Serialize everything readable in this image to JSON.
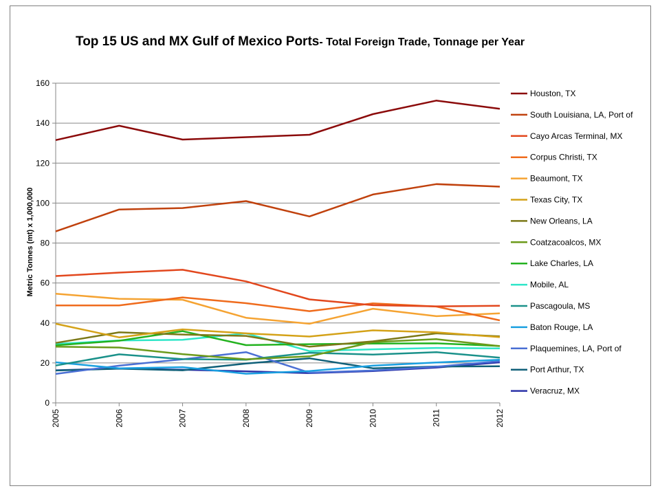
{
  "chart_data": {
    "type": "line",
    "title_main": "Top 15 US and MX Gulf of Mexico Ports",
    "title_sub": "- Total Foreign Trade, Tonnage per Year",
    "xlabel": "",
    "ylabel": "Metric Tonnes (mt) x 1,000,000",
    "ylim": [
      0,
      160
    ],
    "yticks": [
      "0",
      "20",
      "40",
      "60",
      "80",
      "100",
      "120",
      "140",
      "160"
    ],
    "x": [
      "2005",
      "2006",
      "2007",
      "2008",
      "2009",
      "2010",
      "2011",
      "2012"
    ],
    "grid": "horizontal",
    "legend": "right",
    "series": [
      {
        "name": "Houston, TX",
        "color": "#8b0a0a",
        "values": [
          131.5,
          138.7,
          131.8,
          133,
          134.2,
          144.5,
          151.3,
          147.2
        ]
      },
      {
        "name": "South Louisiana, LA, Port of",
        "color": "#c0410d",
        "values": [
          85.8,
          96.8,
          97.5,
          101,
          93.3,
          104.3,
          109.5,
          108.2
        ]
      },
      {
        "name": "Cayo Arcas Terminal, MX",
        "color": "#e2471d",
        "values": [
          63.5,
          65.2,
          66.6,
          60.8,
          51.8,
          48.9,
          48.3,
          48.6
        ]
      },
      {
        "name": "Corpus Christi, TX",
        "color": "#ef6b1c",
        "values": [
          48.8,
          48.8,
          52.8,
          49.9,
          45.9,
          49.8,
          48.2,
          41.3
        ]
      },
      {
        "name": "Beaumont, TX",
        "color": "#f5a332",
        "values": [
          54.6,
          52.1,
          51.6,
          42.6,
          39.6,
          47.1,
          43.4,
          44.8
        ]
      },
      {
        "name": "Texas City, TX",
        "color": "#d4a218",
        "values": [
          39.6,
          32.8,
          36.8,
          34.8,
          33.2,
          36.3,
          35.3,
          32.9
        ]
      },
      {
        "name": "New Orleans, LA",
        "color": "#7b7817",
        "values": [
          30,
          35.3,
          34.2,
          33.5,
          28.1,
          30.8,
          34.8,
          33.3
        ]
      },
      {
        "name": "Coatzacoalcos, MX",
        "color": "#6c9a1a",
        "values": [
          28.1,
          27.7,
          24.4,
          21.8,
          23.3,
          30.4,
          31.9,
          28.4
        ]
      },
      {
        "name": "Lake Charles, LA",
        "color": "#23b21f",
        "values": [
          28.8,
          31.1,
          35.9,
          28.9,
          29.4,
          29.7,
          29.8,
          28.5
        ]
      },
      {
        "name": "Mobile, AL",
        "color": "#2ee6c8",
        "values": [
          29.5,
          31.2,
          31.6,
          34.8,
          25.9,
          26.8,
          27.5,
          27.3
        ]
      },
      {
        "name": "Pascagoula, MS",
        "color": "#1a918a",
        "values": [
          18.7,
          24.3,
          21.9,
          21.6,
          25.1,
          24.2,
          25.4,
          22.6
        ]
      },
      {
        "name": "Baton Rouge, LA",
        "color": "#1aa0e0",
        "values": [
          20.3,
          17.3,
          17.9,
          14.6,
          15.9,
          18.6,
          20.2,
          21.6
        ]
      },
      {
        "name": "Plaquemines, LA, Port of",
        "color": "#4a6fd4",
        "values": [
          14.5,
          18.6,
          21.8,
          25.4,
          15.1,
          16.2,
          18.1,
          20.9
        ]
      },
      {
        "name": "Port Arthur, TX",
        "color": "#0f5f78",
        "values": [
          16.2,
          17.1,
          16.3,
          19.7,
          22.3,
          17.3,
          18.2,
          18.3
        ]
      },
      {
        "name": "Veracruz, MX",
        "color": "#2b32a8",
        "values": [
          16.3,
          17.2,
          16.6,
          15.8,
          14.9,
          15.9,
          17.7,
          20.3
        ]
      }
    ]
  }
}
